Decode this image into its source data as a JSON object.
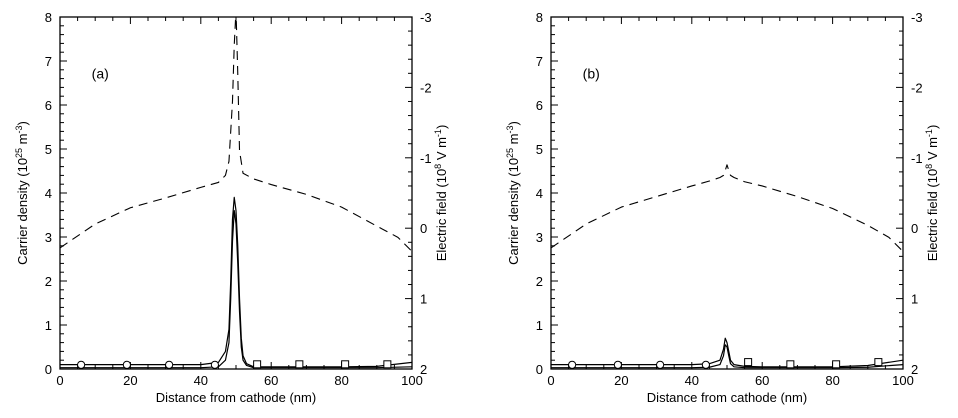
{
  "chart_data": [
    {
      "type": "line",
      "panel_label": "(a)",
      "xlabel": "Distance from cathode (nm)",
      "ylabel": "Carrier density (10^25 m^-3)",
      "y2label": "Electric field (10^8 V m^-1)",
      "xlim": [
        0,
        100
      ],
      "ylim": [
        0,
        8
      ],
      "y2lim": [
        2,
        -3
      ],
      "y2_inverted": true,
      "xticks": [
        0,
        20,
        40,
        60,
        80,
        100
      ],
      "yticks": [
        0,
        1,
        2,
        3,
        4,
        5,
        6,
        7,
        8
      ],
      "y2ticks": [
        2,
        1,
        0,
        -1,
        -2,
        -3
      ],
      "grid": false,
      "series": [
        {
          "style": "solid",
          "axis": "left",
          "x": [
            0,
            10,
            20,
            30,
            40,
            45,
            47,
            48,
            48.5,
            49,
            49.5,
            50,
            50.5,
            51,
            51.5,
            52,
            53,
            55,
            60,
            70,
            80,
            90,
            100
          ],
          "y": [
            0.1,
            0.1,
            0.1,
            0.1,
            0.1,
            0.15,
            0.4,
            0.9,
            2.0,
            3.4,
            3.9,
            3.6,
            2.8,
            1.6,
            0.7,
            0.3,
            0.12,
            0.05,
            0.05,
            0.05,
            0.05,
            0.06,
            0.15
          ]
        },
        {
          "style": "solid",
          "axis": "left",
          "x": [
            0,
            10,
            20,
            30,
            40,
            45,
            47,
            48,
            48.5,
            49,
            49.5,
            50,
            50.5,
            51,
            51.5,
            52,
            53,
            55,
            60,
            70,
            80,
            90,
            100
          ],
          "y": [
            0.03,
            0.03,
            0.03,
            0.03,
            0.03,
            0.05,
            0.2,
            0.6,
            1.6,
            2.9,
            3.6,
            3.3,
            2.4,
            1.3,
            0.5,
            0.2,
            0.08,
            0.03,
            0.03,
            0.03,
            0.03,
            0.03,
            0.05
          ]
        },
        {
          "style": "dashed",
          "axis": "right",
          "x": [
            0,
            10,
            20,
            30,
            40,
            45,
            47,
            48,
            49,
            49.5,
            50,
            50.5,
            51,
            52,
            55,
            60,
            70,
            80,
            90,
            96,
            100
          ],
          "y": [
            0.28,
            -0.06,
            -0.29,
            -0.43,
            -0.58,
            -0.65,
            -0.75,
            -0.95,
            -1.8,
            -2.6,
            -3.1,
            -2.2,
            -1.1,
            -0.78,
            -0.7,
            -0.62,
            -0.48,
            -0.3,
            -0.03,
            0.13,
            0.33
          ]
        },
        {
          "style": "circle-marker",
          "axis": "left",
          "x": [
            6,
            19,
            31,
            44
          ],
          "y": [
            0.05,
            0.05,
            0.05,
            0.05
          ]
        },
        {
          "style": "square-marker",
          "axis": "left",
          "x": [
            56,
            68,
            81,
            93
          ],
          "y": [
            0.05,
            0.05,
            0.05,
            0.05
          ]
        }
      ]
    },
    {
      "type": "line",
      "panel_label": "(b)",
      "xlabel": "Distance from cathode (nm)",
      "ylabel": "Carrier density (10^25 m^-3)",
      "y2label": "Electric field (10^8 V m^-1)",
      "xlim": [
        0,
        100
      ],
      "ylim": [
        0,
        8
      ],
      "y2lim": [
        2,
        -3
      ],
      "y2_inverted": true,
      "xticks": [
        0,
        20,
        40,
        60,
        80,
        100
      ],
      "yticks": [
        0,
        1,
        2,
        3,
        4,
        5,
        6,
        7,
        8
      ],
      "y2ticks": [
        2,
        1,
        0,
        -1,
        -2,
        -3
      ],
      "grid": false,
      "series": [
        {
          "style": "solid",
          "axis": "left",
          "x": [
            0,
            10,
            20,
            30,
            40,
            45,
            48,
            49,
            49.5,
            50,
            50.5,
            51,
            52,
            55,
            60,
            70,
            80,
            90,
            100
          ],
          "y": [
            0.1,
            0.1,
            0.1,
            0.1,
            0.1,
            0.12,
            0.2,
            0.45,
            0.7,
            0.6,
            0.4,
            0.2,
            0.1,
            0.06,
            0.05,
            0.05,
            0.05,
            0.08,
            0.2
          ]
        },
        {
          "style": "solid",
          "axis": "left",
          "x": [
            0,
            10,
            20,
            30,
            40,
            45,
            48,
            49,
            49.5,
            50,
            50.5,
            51,
            52,
            55,
            60,
            70,
            80,
            90,
            100
          ],
          "y": [
            0.03,
            0.03,
            0.03,
            0.03,
            0.03,
            0.04,
            0.1,
            0.3,
            0.55,
            0.5,
            0.3,
            0.12,
            0.05,
            0.03,
            0.03,
            0.03,
            0.03,
            0.04,
            0.1
          ]
        },
        {
          "style": "dashed",
          "axis": "right",
          "x": [
            0,
            10,
            20,
            30,
            40,
            45,
            48,
            49,
            49.5,
            50,
            50.5,
            51,
            52,
            55,
            60,
            70,
            80,
            90,
            96,
            100
          ],
          "y": [
            0.28,
            -0.06,
            -0.3,
            -0.45,
            -0.6,
            -0.67,
            -0.72,
            -0.75,
            -0.82,
            -0.9,
            -0.82,
            -0.75,
            -0.72,
            -0.66,
            -0.6,
            -0.45,
            -0.28,
            -0.04,
            0.13,
            0.33
          ]
        },
        {
          "style": "circle-marker",
          "axis": "left",
          "x": [
            6,
            19,
            31,
            44
          ],
          "y": [
            0.05,
            0.05,
            0.05,
            0.05
          ]
        },
        {
          "style": "square-marker",
          "axis": "left",
          "x": [
            56,
            68,
            81,
            93
          ],
          "y": [
            0.1,
            0.05,
            0.05,
            0.1
          ]
        }
      ]
    }
  ]
}
